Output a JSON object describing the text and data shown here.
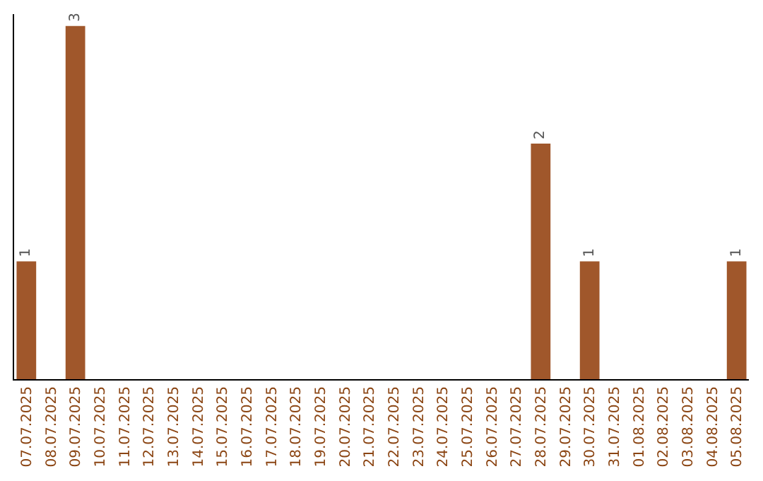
{
  "chart_data": {
    "type": "bar",
    "categories": [
      "07.07.2025",
      "08.07.2025",
      "09.07.2025",
      "10.07.2025",
      "11.07.2025",
      "12.07.2025",
      "13.07.2025",
      "14.07.2025",
      "15.07.2025",
      "16.07.2025",
      "17.07.2025",
      "18.07.2025",
      "19.07.2025",
      "20.07.2025",
      "21.07.2025",
      "22.07.2025",
      "23.07.2025",
      "24.07.2025",
      "25.07.2025",
      "26.07.2025",
      "27.07.2025",
      "28.07.2025",
      "29.07.2025",
      "30.07.2025",
      "31.07.2025",
      "01.08.2025",
      "02.08.2025",
      "03.08.2025",
      "04.08.2025",
      "05.08.2025"
    ],
    "values": [
      1,
      0,
      3,
      0,
      0,
      0,
      0,
      0,
      0,
      0,
      0,
      0,
      0,
      0,
      0,
      0,
      0,
      0,
      0,
      0,
      0,
      2,
      0,
      1,
      0,
      0,
      0,
      0,
      0,
      1
    ],
    "value_labels": [
      "1",
      null,
      "3",
      null,
      null,
      null,
      null,
      null,
      null,
      null,
      null,
      null,
      null,
      null,
      null,
      null,
      null,
      null,
      null,
      null,
      null,
      "2",
      null,
      "1",
      null,
      null,
      null,
      null,
      null,
      "1"
    ],
    "color": "#a0572b",
    "ylim": [
      0,
      3.1
    ],
    "tick_labels": "x",
    "grid": false,
    "legend": false
  }
}
